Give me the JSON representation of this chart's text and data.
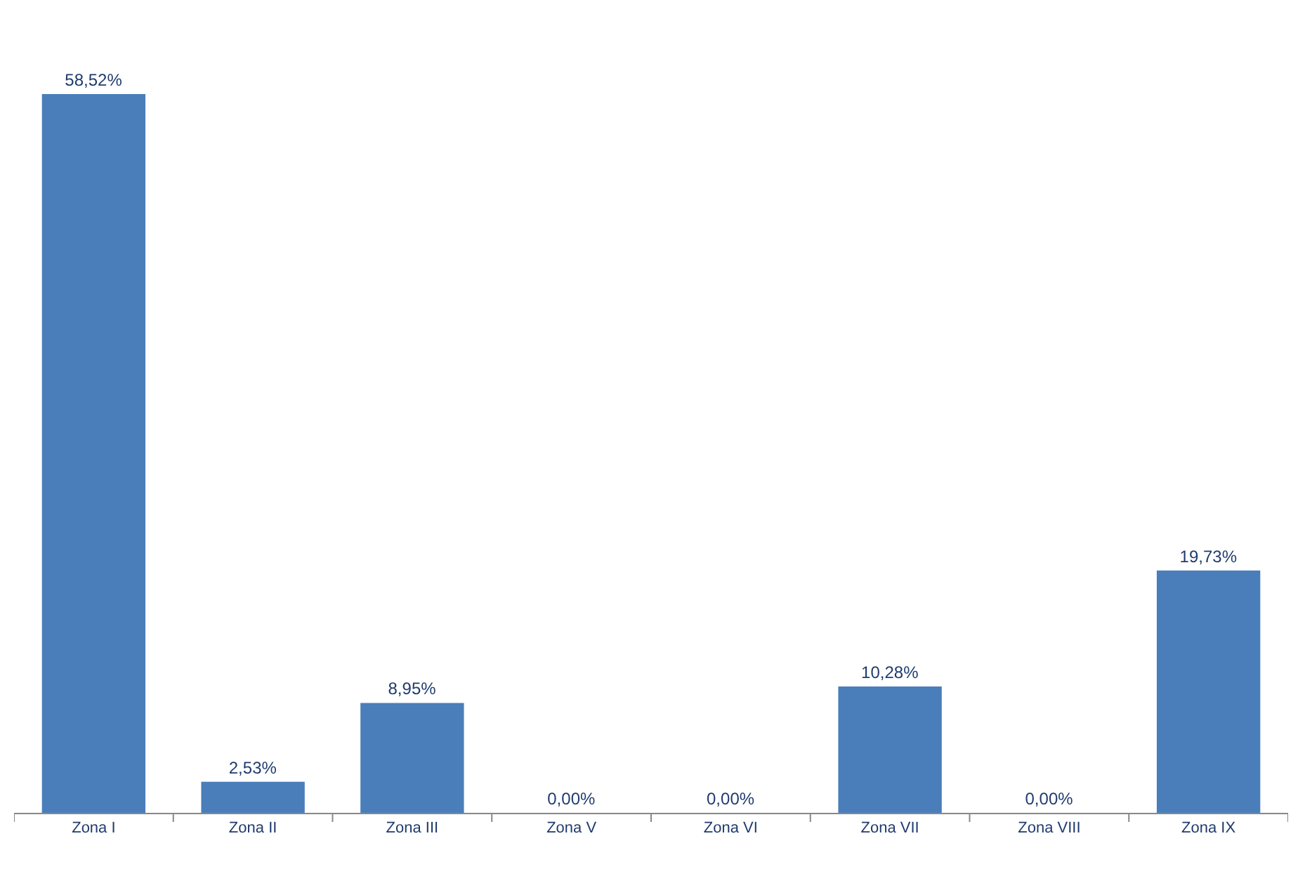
{
  "chart_data": {
    "type": "bar",
    "categories": [
      "Zona I",
      "Zona II",
      "Zona III",
      "Zona V",
      "Zona VI",
      "Zona VII",
      "Zona VIII",
      "Zona IX"
    ],
    "values": [
      58.52,
      2.53,
      8.95,
      0,
      0,
      10.28,
      0,
      19.73
    ],
    "value_labels": [
      "58,52%",
      "2,53%",
      "8,95%",
      "0,00%",
      "0,00%",
      "10,28%",
      "0,00%",
      "19,73%"
    ],
    "color": "#4a7ebb",
    "tick_labels": "x"
  }
}
